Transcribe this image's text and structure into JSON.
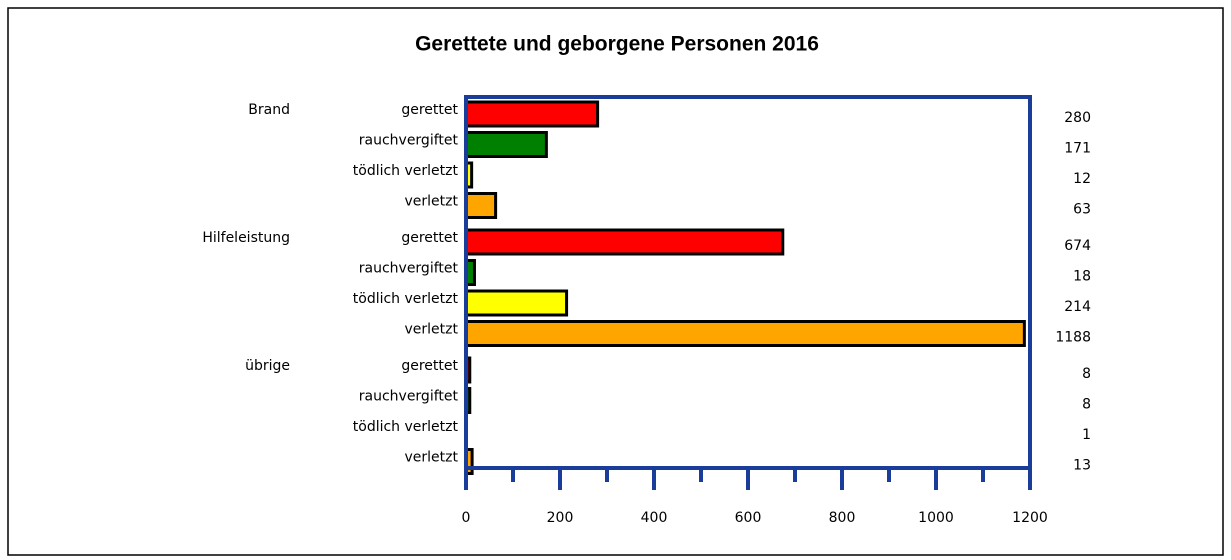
{
  "chart_data": {
    "type": "bar",
    "orientation": "horizontal",
    "title": "Gerettete und geborgene Personen 2016",
    "groups": [
      {
        "name": "Brand",
        "categories": [
          "gerettet",
          "rauchvergiftet",
          "tödlich verletzt",
          "verletzt"
        ],
        "values": [
          280,
          171,
          12,
          63
        ]
      },
      {
        "name": "Hilfeleistung",
        "categories": [
          "gerettet",
          "rauchvergiftet",
          "tödlich verletzt",
          "verletzt"
        ],
        "values": [
          674,
          18,
          214,
          1188
        ]
      },
      {
        "name": "übrige",
        "categories": [
          "gerettet",
          "rauchvergiftet",
          "tödlich verletzt",
          "verletzt"
        ],
        "values": [
          8,
          8,
          1,
          13
        ]
      }
    ],
    "colors": [
      "#ff0000",
      "#008000",
      "#ffff00",
      "#ffa500"
    ],
    "frame_color": "#1a3d99",
    "xlim": [
      0,
      1200
    ],
    "xticks": [
      0,
      200,
      400,
      600,
      800,
      1000,
      1200
    ],
    "xminorticks": [
      100,
      300,
      500,
      700,
      900,
      1100
    ]
  }
}
